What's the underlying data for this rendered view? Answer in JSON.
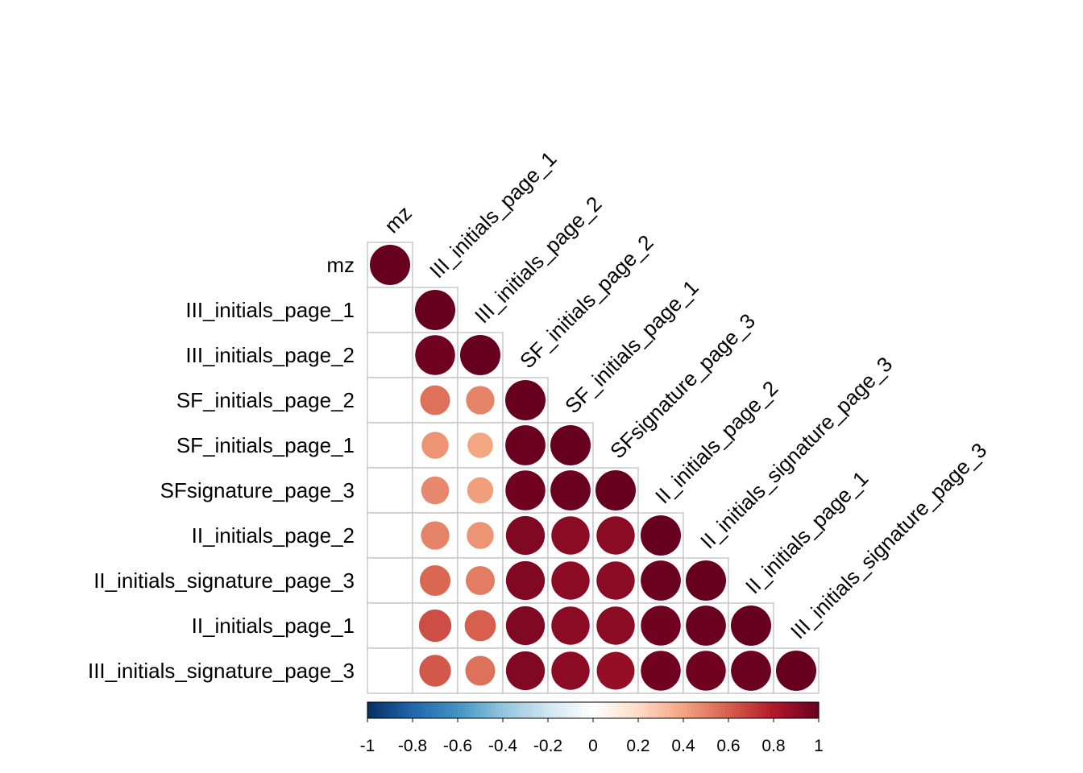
{
  "chart_data": {
    "type": "heatmap",
    "variant": "lower-triangular correlation matrix (circle size and color encode correlation)",
    "title": "",
    "variables": [
      "mz",
      "III_initials_page_1",
      "III_initials_page_2",
      "SF_initials_page_2",
      "SF_initials_page_1",
      "SFsignature_page_3",
      "II_initials_page_2",
      "II_initials_signature_page_3",
      "II_initials_page_1",
      "III_initials_signature_page_3"
    ],
    "matrix": [
      [
        1.0
      ],
      [
        0.0,
        1.0
      ],
      [
        0.0,
        0.98,
        1.0
      ],
      [
        0.0,
        0.55,
        0.5,
        1.0
      ],
      [
        0.0,
        0.45,
        0.4,
        0.99,
        1.0
      ],
      [
        0.0,
        0.48,
        0.42,
        0.98,
        0.99,
        1.0
      ],
      [
        0.0,
        0.5,
        0.45,
        0.93,
        0.9,
        0.9,
        1.0
      ],
      [
        0.0,
        0.58,
        0.52,
        0.93,
        0.9,
        0.9,
        0.99,
        1.0
      ],
      [
        0.0,
        0.65,
        0.6,
        0.93,
        0.9,
        0.9,
        0.98,
        0.99,
        1.0
      ],
      [
        0.0,
        0.62,
        0.55,
        0.93,
        0.9,
        0.88,
        0.98,
        0.98,
        0.99,
        1.0
      ]
    ],
    "colorbar": {
      "range": [
        -1,
        1
      ],
      "ticks": [
        "-1",
        "-0.8",
        "-0.6",
        "-0.4",
        "-0.2",
        "0",
        "0.2",
        "0.4",
        "0.6",
        "0.8",
        "1"
      ],
      "colors": [
        "#053061",
        "#2166ac",
        "#4393c3",
        "#92c5de",
        "#d1e5f0",
        "#ffffff",
        "#fddbc7",
        "#f4a582",
        "#d6604d",
        "#b2182b",
        "#67001f"
      ],
      "placement": "bottom"
    }
  }
}
